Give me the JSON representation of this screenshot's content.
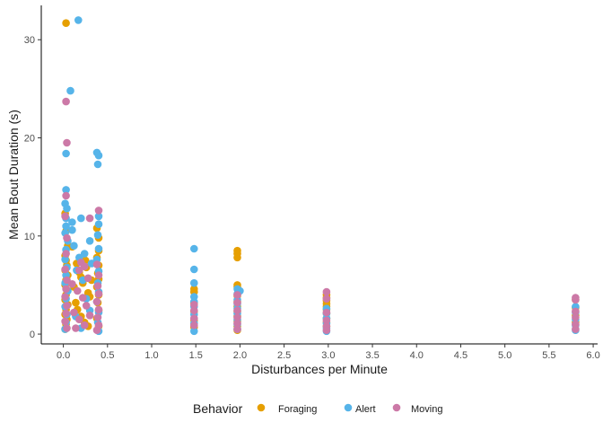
{
  "chart_data": {
    "type": "scatter",
    "title": "",
    "xlabel": "Disturbances per Minute",
    "ylabel": "Mean Bout Duration (s)",
    "xlim": [
      -0.25,
      6.05
    ],
    "ylim": [
      -1,
      33.5
    ],
    "xticks": [
      0.0,
      0.5,
      1.0,
      1.5,
      2.0,
      2.5,
      3.0,
      3.5,
      4.0,
      4.5,
      5.0,
      5.5,
      6.0
    ],
    "xtick_labels": [
      "0.0",
      "0.5",
      "1.0",
      "1.5",
      "2.0",
      "2.5",
      "3.0",
      "3.5",
      "4.0",
      "4.5",
      "5.0",
      "5.5",
      "6.0"
    ],
    "yticks": [
      0,
      10,
      20,
      30
    ],
    "ytick_labels": [
      "0",
      "10",
      "20",
      "30"
    ],
    "grid": false,
    "legend": {
      "title": "Behavior",
      "position": "bottom"
    },
    "series": [
      {
        "name": "Foraging",
        "color": "#E69F00",
        "points": [
          [
            0.03,
            31.7
          ],
          [
            0.02,
            12.3
          ],
          [
            0.03,
            10.5
          ],
          [
            0.05,
            9.0
          ],
          [
            0.1,
            8.9
          ],
          [
            0.02,
            8.0
          ],
          [
            0.03,
            7.5
          ],
          [
            0.04,
            7.0
          ],
          [
            0.02,
            6.5
          ],
          [
            0.05,
            6.0
          ],
          [
            0.03,
            5.5
          ],
          [
            0.02,
            5.0
          ],
          [
            0.04,
            4.5
          ],
          [
            0.03,
            4.0
          ],
          [
            0.02,
            3.5
          ],
          [
            0.05,
            3.0
          ],
          [
            0.03,
            2.5
          ],
          [
            0.02,
            2.0
          ],
          [
            0.04,
            1.5
          ],
          [
            0.03,
            1.0
          ],
          [
            0.02,
            0.5
          ],
          [
            0.15,
            7.2
          ],
          [
            0.18,
            6.3
          ],
          [
            0.2,
            5.8
          ],
          [
            0.22,
            5.2
          ],
          [
            0.25,
            7.5
          ],
          [
            0.26,
            6.8
          ],
          [
            0.28,
            4.2
          ],
          [
            0.3,
            3.8
          ],
          [
            0.32,
            5.5
          ],
          [
            0.12,
            4.8
          ],
          [
            0.14,
            3.2
          ],
          [
            0.16,
            2.5
          ],
          [
            0.2,
            1.8
          ],
          [
            0.24,
            1.2
          ],
          [
            0.28,
            0.8
          ],
          [
            0.38,
            10.8
          ],
          [
            0.4,
            9.8
          ],
          [
            0.4,
            8.5
          ],
          [
            0.38,
            7.8
          ],
          [
            0.4,
            7.0
          ],
          [
            0.39,
            6.2
          ],
          [
            0.4,
            5.6
          ],
          [
            0.38,
            4.8
          ],
          [
            0.4,
            4.0
          ],
          [
            0.39,
            3.2
          ],
          [
            0.4,
            2.4
          ],
          [
            0.38,
            1.6
          ],
          [
            0.4,
            0.8
          ],
          [
            1.48,
            4.6
          ],
          [
            1.48,
            4.3
          ],
          [
            1.48,
            3.2
          ],
          [
            1.48,
            2.3
          ],
          [
            1.48,
            1.4
          ],
          [
            1.48,
            0.7
          ],
          [
            1.97,
            8.5
          ],
          [
            1.97,
            8.2
          ],
          [
            1.97,
            7.8
          ],
          [
            1.97,
            5.0
          ],
          [
            1.97,
            4.8
          ],
          [
            1.97,
            3.9
          ],
          [
            1.97,
            3.3
          ],
          [
            1.97,
            2.8
          ],
          [
            1.97,
            2.3
          ],
          [
            1.97,
            1.8
          ],
          [
            1.97,
            1.3
          ],
          [
            1.97,
            0.8
          ],
          [
            1.97,
            0.4
          ],
          [
            2.98,
            4.0
          ],
          [
            2.98,
            3.7
          ],
          [
            2.98,
            3.4
          ],
          [
            2.98,
            3.1
          ],
          [
            2.98,
            2.8
          ],
          [
            2.98,
            2.5
          ],
          [
            2.98,
            2.1
          ],
          [
            2.98,
            1.6
          ],
          [
            2.98,
            1.2
          ],
          [
            2.98,
            0.8
          ],
          [
            5.8,
            3.5
          ],
          [
            5.8,
            2.7
          ],
          [
            5.8,
            1.9
          ],
          [
            5.8,
            1.2
          ]
        ]
      },
      {
        "name": "Alert",
        "color": "#56B4E9",
        "points": [
          [
            0.17,
            32.0
          ],
          [
            0.08,
            24.8
          ],
          [
            0.03,
            18.4
          ],
          [
            0.03,
            14.7
          ],
          [
            0.02,
            13.3
          ],
          [
            0.04,
            12.8
          ],
          [
            0.03,
            11.8
          ],
          [
            0.03,
            11.0
          ],
          [
            0.02,
            10.3
          ],
          [
            0.05,
            9.5
          ],
          [
            0.03,
            8.6
          ],
          [
            0.02,
            7.6
          ],
          [
            0.04,
            6.8
          ],
          [
            0.03,
            6.0
          ],
          [
            0.02,
            5.2
          ],
          [
            0.05,
            4.4
          ],
          [
            0.03,
            3.6
          ],
          [
            0.02,
            2.8
          ],
          [
            0.04,
            2.0
          ],
          [
            0.03,
            1.2
          ],
          [
            0.02,
            0.5
          ],
          [
            0.1,
            11.4
          ],
          [
            0.1,
            10.6
          ],
          [
            0.12,
            9.0
          ],
          [
            0.2,
            11.8
          ],
          [
            0.24,
            8.2
          ],
          [
            0.18,
            7.8
          ],
          [
            0.15,
            6.5
          ],
          [
            0.22,
            5.5
          ],
          [
            0.3,
            9.5
          ],
          [
            0.32,
            7.2
          ],
          [
            0.26,
            3.6
          ],
          [
            0.3,
            2.4
          ],
          [
            0.14,
            1.8
          ],
          [
            0.2,
            0.6
          ],
          [
            0.38,
            18.5
          ],
          [
            0.4,
            18.2
          ],
          [
            0.39,
            17.3
          ],
          [
            0.4,
            12.0
          ],
          [
            0.4,
            11.2
          ],
          [
            0.39,
            10.1
          ],
          [
            0.4,
            8.7
          ],
          [
            0.38,
            7.6
          ],
          [
            0.4,
            6.4
          ],
          [
            0.39,
            5.2
          ],
          [
            0.4,
            4.3
          ],
          [
            0.38,
            3.3
          ],
          [
            0.4,
            2.2
          ],
          [
            0.39,
            1.2
          ],
          [
            0.4,
            0.3
          ],
          [
            1.48,
            8.7
          ],
          [
            1.48,
            6.6
          ],
          [
            1.48,
            5.2
          ],
          [
            1.48,
            3.8
          ],
          [
            1.48,
            3.3
          ],
          [
            1.48,
            2.8
          ],
          [
            1.48,
            2.0
          ],
          [
            1.48,
            1.1
          ],
          [
            1.48,
            0.3
          ],
          [
            1.97,
            4.6
          ],
          [
            1.97,
            4.1
          ],
          [
            1.97,
            3.5
          ],
          [
            1.97,
            3.1
          ],
          [
            1.97,
            2.6
          ],
          [
            1.97,
            2.1
          ],
          [
            1.97,
            1.5
          ],
          [
            1.97,
            1.0
          ],
          [
            1.97,
            0.5
          ],
          [
            2.0,
            4.4
          ],
          [
            2.98,
            2.6
          ],
          [
            2.98,
            2.1
          ],
          [
            2.98,
            1.6
          ],
          [
            2.98,
            1.1
          ],
          [
            2.98,
            0.6
          ],
          [
            2.98,
            0.3
          ],
          [
            5.8,
            2.8
          ],
          [
            5.8,
            2.2
          ],
          [
            5.8,
            1.5
          ],
          [
            5.8,
            0.9
          ],
          [
            5.8,
            0.4
          ]
        ]
      },
      {
        "name": "Moving",
        "color": "#CC79A7",
        "points": [
          [
            0.03,
            23.7
          ],
          [
            0.04,
            19.5
          ],
          [
            0.03,
            14.1
          ],
          [
            0.02,
            12.0
          ],
          [
            0.04,
            9.8
          ],
          [
            0.03,
            8.2
          ],
          [
            0.02,
            6.6
          ],
          [
            0.04,
            5.5
          ],
          [
            0.03,
            4.6
          ],
          [
            0.02,
            3.8
          ],
          [
            0.04,
            2.9
          ],
          [
            0.03,
            2.1
          ],
          [
            0.02,
            1.3
          ],
          [
            0.04,
            0.6
          ],
          [
            0.3,
            11.8
          ],
          [
            0.2,
            7.3
          ],
          [
            0.18,
            6.5
          ],
          [
            0.24,
            6.9
          ],
          [
            0.28,
            5.7
          ],
          [
            0.1,
            5.1
          ],
          [
            0.16,
            4.4
          ],
          [
            0.22,
            3.7
          ],
          [
            0.26,
            2.9
          ],
          [
            0.12,
            2.2
          ],
          [
            0.18,
            1.5
          ],
          [
            0.24,
            0.9
          ],
          [
            0.3,
            1.9
          ],
          [
            0.14,
            0.6
          ],
          [
            0.4,
            12.6
          ],
          [
            0.38,
            7.1
          ],
          [
            0.4,
            6.0
          ],
          [
            0.39,
            4.9
          ],
          [
            0.4,
            4.1
          ],
          [
            0.38,
            3.3
          ],
          [
            0.4,
            2.5
          ],
          [
            0.39,
            1.7
          ],
          [
            0.4,
            0.9
          ],
          [
            0.38,
            0.4
          ],
          [
            1.48,
            3.0
          ],
          [
            1.48,
            2.4
          ],
          [
            1.48,
            1.6
          ],
          [
            1.48,
            0.9
          ],
          [
            1.97,
            4.0
          ],
          [
            1.97,
            3.2
          ],
          [
            1.97,
            2.4
          ],
          [
            1.97,
            1.7
          ],
          [
            1.97,
            1.1
          ],
          [
            1.97,
            0.5
          ],
          [
            2.98,
            4.3
          ],
          [
            2.98,
            3.6
          ],
          [
            2.98,
            2.2
          ],
          [
            2.98,
            1.4
          ],
          [
            2.98,
            0.8
          ],
          [
            2.98,
            0.4
          ],
          [
            5.8,
            3.7
          ],
          [
            5.8,
            3.5
          ],
          [
            5.8,
            2.3
          ],
          [
            5.8,
            1.7
          ],
          [
            5.8,
            1.0
          ],
          [
            5.8,
            0.5
          ]
        ]
      }
    ]
  }
}
